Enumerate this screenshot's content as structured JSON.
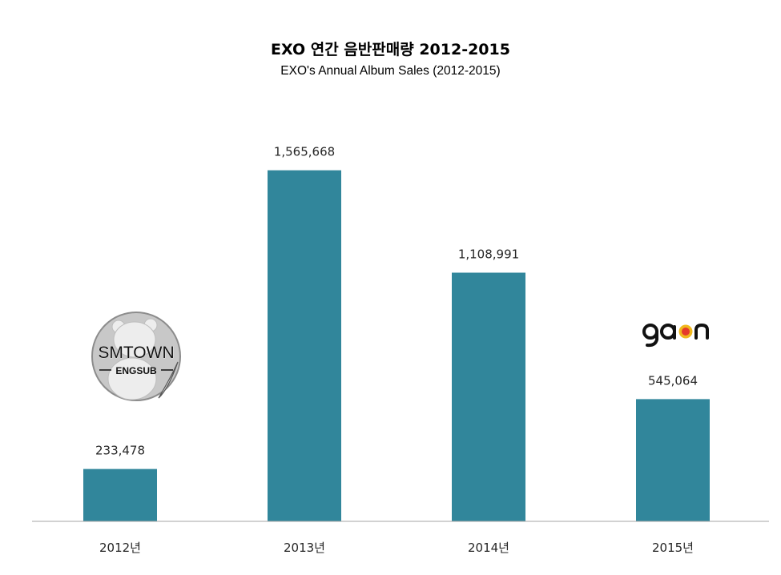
{
  "chart_data": {
    "type": "bar",
    "title": "EXO 연간 음반판매량 2012-2015",
    "subtitle": "EXO's Annual Album Sales (2012-2015)",
    "categories": [
      "2012년",
      "2013년",
      "2014년",
      "2015년"
    ],
    "values": [
      233478,
      1565668,
      1108991,
      545064
    ],
    "value_labels": [
      "233,478",
      "1,565,668",
      "1,108,991",
      "545,064"
    ],
    "ylim": [
      0,
      1800000
    ],
    "grid": false,
    "legend": "none",
    "xlabel": "",
    "ylabel": ""
  },
  "colors": {
    "bar": "#31869b",
    "axis": "#a6a6a6"
  },
  "logos": {
    "smtown": {
      "line1": "SMTOWN",
      "line2": "ENGSUB",
      "icon": "bear-sticker-icon"
    },
    "gaon": {
      "text": "gaon",
      "icon": "gaon-logo-icon"
    }
  }
}
